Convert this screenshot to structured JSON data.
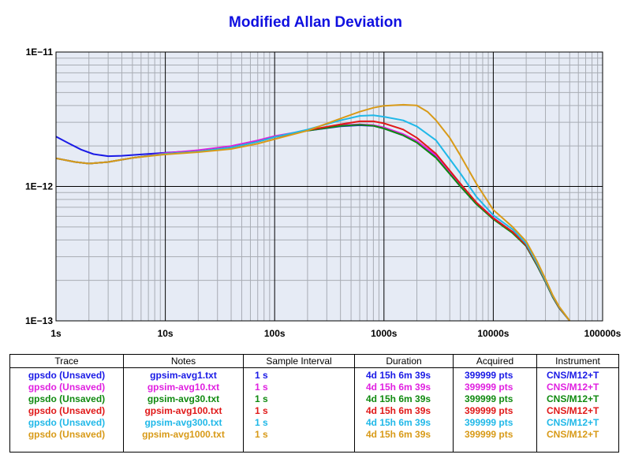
{
  "chart_data": {
    "type": "line",
    "title": "Modified Allan Deviation",
    "x_scale": "log",
    "y_scale": "log",
    "xlim": [
      1,
      100000
    ],
    "ylim": [
      1e-13,
      1e-11
    ],
    "x_ticks": [
      {
        "value": 1,
        "label": "1s"
      },
      {
        "value": 10,
        "label": "10s"
      },
      {
        "value": 100,
        "label": "100s"
      },
      {
        "value": 1000,
        "label": "1000s"
      },
      {
        "value": 10000,
        "label": "10000s"
      },
      {
        "value": 100000,
        "label": "100000s"
      }
    ],
    "y_ticks": [
      {
        "value": 1e-13,
        "label": "1E−13"
      },
      {
        "value": 1e-12,
        "label": "1E−12"
      },
      {
        "value": 1e-11,
        "label": "1E−11"
      }
    ],
    "grid": true,
    "series": [
      {
        "name": "gpsdo (Unsaved)",
        "color": "#1a1ae6",
        "points": [
          [
            1,
            2.35e-12
          ],
          [
            1.3,
            2.1e-12
          ],
          [
            1.7,
            1.88e-12
          ],
          [
            2.2,
            1.74e-12
          ],
          [
            3,
            1.68e-12
          ],
          [
            4,
            1.69e-12
          ],
          [
            6,
            1.73e-12
          ],
          [
            10,
            1.78e-12
          ],
          [
            20,
            1.84e-12
          ],
          [
            40,
            1.98e-12
          ],
          [
            70,
            2.18e-12
          ],
          [
            100,
            2.35e-12
          ],
          [
            200,
            2.6e-12
          ],
          [
            400,
            2.8e-12
          ],
          [
            600,
            2.85e-12
          ],
          [
            800,
            2.82e-12
          ],
          [
            1000,
            2.7e-12
          ],
          [
            1500,
            2.4e-12
          ],
          [
            2000,
            2.13e-12
          ],
          [
            3000,
            1.65e-12
          ],
          [
            5000,
            1e-12
          ],
          [
            7000,
            7.4e-13
          ],
          [
            10000,
            5.75e-13
          ],
          [
            15000,
            4.55e-13
          ],
          [
            20000,
            3.6e-13
          ],
          [
            25000,
            2.6e-13
          ],
          [
            30000,
            1.95e-13
          ],
          [
            35000,
            1.5e-13
          ],
          [
            40000,
            1.25e-13
          ],
          [
            50000,
            1e-13
          ]
        ]
      },
      {
        "name": "gpsdo (Unsaved)",
        "color": "#e020e0",
        "points": [
          [
            1,
            1.62e-12
          ],
          [
            1.5,
            1.52e-12
          ],
          [
            2,
            1.48e-12
          ],
          [
            3,
            1.52e-12
          ],
          [
            5,
            1.63e-12
          ],
          [
            10,
            1.77e-12
          ],
          [
            20,
            1.86e-12
          ],
          [
            40,
            2e-12
          ],
          [
            70,
            2.2e-12
          ],
          [
            100,
            2.37e-12
          ],
          [
            200,
            2.62e-12
          ],
          [
            400,
            2.85e-12
          ],
          [
            600,
            2.9e-12
          ],
          [
            800,
            2.86e-12
          ],
          [
            1000,
            2.75e-12
          ],
          [
            1500,
            2.45e-12
          ],
          [
            2000,
            2.18e-12
          ],
          [
            3000,
            1.7e-12
          ],
          [
            5000,
            1.04e-12
          ],
          [
            7000,
            7.6e-13
          ],
          [
            10000,
            5.85e-13
          ],
          [
            15000,
            4.6e-13
          ],
          [
            20000,
            3.65e-13
          ],
          [
            25000,
            2.65e-13
          ],
          [
            30000,
            1.98e-13
          ],
          [
            35000,
            1.52e-13
          ],
          [
            40000,
            1.26e-13
          ],
          [
            50000,
            1e-13
          ]
        ]
      },
      {
        "name": "gpsdo (Unsaved)",
        "color": "#108a10",
        "points": [
          [
            1,
            1.62e-12
          ],
          [
            1.5,
            1.52e-12
          ],
          [
            2,
            1.48e-12
          ],
          [
            3,
            1.52e-12
          ],
          [
            5,
            1.63e-12
          ],
          [
            10,
            1.75e-12
          ],
          [
            20,
            1.82e-12
          ],
          [
            40,
            1.95e-12
          ],
          [
            70,
            2.15e-12
          ],
          [
            100,
            2.33e-12
          ],
          [
            200,
            2.6e-12
          ],
          [
            400,
            2.82e-12
          ],
          [
            600,
            2.88e-12
          ],
          [
            800,
            2.83e-12
          ],
          [
            1000,
            2.7e-12
          ],
          [
            1500,
            2.4e-12
          ],
          [
            2000,
            2.12e-12
          ],
          [
            3000,
            1.63e-12
          ],
          [
            5000,
            1e-12
          ],
          [
            7000,
            7.4e-13
          ],
          [
            10000,
            5.7e-13
          ],
          [
            15000,
            4.5e-13
          ],
          [
            20000,
            3.6e-13
          ],
          [
            25000,
            2.6e-13
          ],
          [
            30000,
            1.95e-13
          ],
          [
            35000,
            1.5e-13
          ],
          [
            40000,
            1.25e-13
          ],
          [
            50000,
            1e-13
          ]
        ]
      },
      {
        "name": "gpsdo (Unsaved)",
        "color": "#e01818",
        "points": [
          [
            1,
            1.62e-12
          ],
          [
            1.5,
            1.52e-12
          ],
          [
            2,
            1.48e-12
          ],
          [
            3,
            1.52e-12
          ],
          [
            5,
            1.63e-12
          ],
          [
            10,
            1.75e-12
          ],
          [
            20,
            1.82e-12
          ],
          [
            40,
            1.95e-12
          ],
          [
            70,
            2.15e-12
          ],
          [
            100,
            2.33e-12
          ],
          [
            200,
            2.62e-12
          ],
          [
            400,
            2.9e-12
          ],
          [
            600,
            3.05e-12
          ],
          [
            800,
            3.05e-12
          ],
          [
            1000,
            2.95e-12
          ],
          [
            1500,
            2.65e-12
          ],
          [
            2000,
            2.3e-12
          ],
          [
            3000,
            1.75e-12
          ],
          [
            5000,
            1.05e-12
          ],
          [
            7000,
            7.6e-13
          ],
          [
            10000,
            5.8e-13
          ],
          [
            15000,
            4.6e-13
          ],
          [
            20000,
            3.65e-13
          ],
          [
            25000,
            2.65e-13
          ],
          [
            30000,
            1.98e-13
          ],
          [
            35000,
            1.52e-13
          ],
          [
            40000,
            1.26e-13
          ],
          [
            50000,
            1e-13
          ]
        ]
      },
      {
        "name": "gpsdo (Unsaved)",
        "color": "#20b8e8",
        "points": [
          [
            1,
            1.62e-12
          ],
          [
            1.5,
            1.52e-12
          ],
          [
            2,
            1.48e-12
          ],
          [
            3,
            1.52e-12
          ],
          [
            5,
            1.63e-12
          ],
          [
            10,
            1.75e-12
          ],
          [
            20,
            1.82e-12
          ],
          [
            40,
            1.95e-12
          ],
          [
            70,
            2.15e-12
          ],
          [
            100,
            2.33e-12
          ],
          [
            200,
            2.65e-12
          ],
          [
            400,
            3.1e-12
          ],
          [
            600,
            3.35e-12
          ],
          [
            800,
            3.38e-12
          ],
          [
            1000,
            3.3e-12
          ],
          [
            1500,
            3.1e-12
          ],
          [
            2000,
            2.8e-12
          ],
          [
            3000,
            2.2e-12
          ],
          [
            5000,
            1.25e-12
          ],
          [
            7000,
            8.4e-13
          ],
          [
            10000,
            6.1e-13
          ],
          [
            15000,
            4.8e-13
          ],
          [
            20000,
            3.75e-13
          ],
          [
            25000,
            2.7e-13
          ],
          [
            30000,
            2e-13
          ],
          [
            35000,
            1.53e-13
          ],
          [
            40000,
            1.27e-13
          ],
          [
            50000,
            1e-13
          ]
        ]
      },
      {
        "name": "gpsdo (Unsaved)",
        "color": "#d89a18",
        "points": [
          [
            1,
            1.62e-12
          ],
          [
            1.5,
            1.52e-12
          ],
          [
            2,
            1.48e-12
          ],
          [
            3,
            1.52e-12
          ],
          [
            5,
            1.63e-12
          ],
          [
            10,
            1.73e-12
          ],
          [
            20,
            1.8e-12
          ],
          [
            40,
            1.9e-12
          ],
          [
            70,
            2.08e-12
          ],
          [
            100,
            2.25e-12
          ],
          [
            200,
            2.6e-12
          ],
          [
            400,
            3.2e-12
          ],
          [
            600,
            3.6e-12
          ],
          [
            800,
            3.85e-12
          ],
          [
            1000,
            3.98e-12
          ],
          [
            1500,
            4.05e-12
          ],
          [
            2000,
            4e-12
          ],
          [
            2500,
            3.6e-12
          ],
          [
            3000,
            3.1e-12
          ],
          [
            4000,
            2.3e-12
          ],
          [
            5000,
            1.7e-12
          ],
          [
            7000,
            1.05e-12
          ],
          [
            10000,
            6.7e-13
          ],
          [
            15000,
            5e-13
          ],
          [
            20000,
            3.9e-13
          ],
          [
            25000,
            2.8e-13
          ],
          [
            30000,
            2.05e-13
          ],
          [
            35000,
            1.55e-13
          ],
          [
            40000,
            1.28e-13
          ],
          [
            50000,
            1e-13
          ]
        ]
      }
    ]
  },
  "table": {
    "headers": {
      "trace": "Trace",
      "notes": "Notes",
      "interval": "Sample Interval",
      "duration": "Duration",
      "acquired": "Acquired",
      "instrument": "Instrument"
    },
    "rows": [
      {
        "trace": "gpsdo (Unsaved)",
        "notes": "gpsim-avg1.txt",
        "interval": "1 s",
        "duration": "4d 15h 6m 39s",
        "acquired": "399999 pts",
        "instrument": "CNS/M12+T",
        "color": "#1a1ae6"
      },
      {
        "trace": "gpsdo (Unsaved)",
        "notes": "gpsim-avg10.txt",
        "interval": "1 s",
        "duration": "4d 15h 6m 39s",
        "acquired": "399999 pts",
        "instrument": "CNS/M12+T",
        "color": "#e020e0"
      },
      {
        "trace": "gpsdo (Unsaved)",
        "notes": "gpsim-avg30.txt",
        "interval": "1 s",
        "duration": "4d 15h 6m 39s",
        "acquired": "399999 pts",
        "instrument": "CNS/M12+T",
        "color": "#108a10"
      },
      {
        "trace": "gpsdo (Unsaved)",
        "notes": "gpsim-avg100.txt",
        "interval": "1 s",
        "duration": "4d 15h 6m 39s",
        "acquired": "399999 pts",
        "instrument": "CNS/M12+T",
        "color": "#e01818"
      },
      {
        "trace": "gpsdo (Unsaved)",
        "notes": "gpsim-avg300.txt",
        "interval": "1 s",
        "duration": "4d 15h 6m 39s",
        "acquired": "399999 pts",
        "instrument": "CNS/M12+T",
        "color": "#20b8e8"
      },
      {
        "trace": "gpsdo (Unsaved)",
        "notes": "gpsim-avg1000.txt",
        "interval": "1 s",
        "duration": "4d 15h 6m 39s",
        "acquired": "399999 pts",
        "instrument": "CNS/M12+T",
        "color": "#d89a18"
      }
    ]
  }
}
